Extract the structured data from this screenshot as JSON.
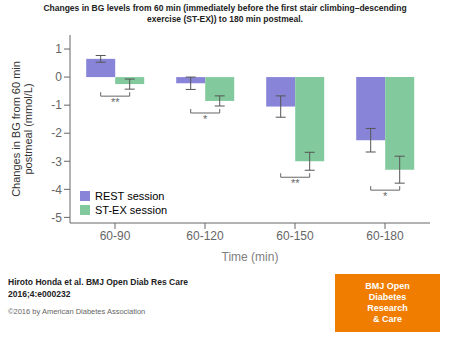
{
  "chart_data": {
    "type": "bar",
    "title": "Changes in BG levels from 60 min (immediately before the first stair climbing–descending\nexercise (ST-EX)) to 180 min postmeal.",
    "xlabel": "Time (min)",
    "ylabel": "Changes in BG from 60 min\npostmeal (mmol/L)",
    "categories": [
      "60-90",
      "60-120",
      "60-150",
      "60-180"
    ],
    "series": [
      {
        "name": "REST session",
        "color": "#8884d8",
        "values": [
          0.65,
          -0.22,
          -1.05,
          -2.25
        ],
        "errors": [
          0.12,
          0.22,
          0.38,
          0.42
        ]
      },
      {
        "name": "ST-EX session",
        "color": "#82ca9d",
        "values": [
          -0.25,
          -0.85,
          -3.0,
          -3.3
        ],
        "errors": [
          0.18,
          0.18,
          0.32,
          0.48
        ]
      }
    ],
    "ylim": [
      -5.2,
      1.5
    ],
    "yticks": [
      -5,
      -4,
      -3,
      -2,
      -1,
      0,
      1
    ],
    "grid": false,
    "legend": "lower left",
    "annotations": [
      {
        "text": "**",
        "category": "60-90"
      },
      {
        "text": "*",
        "category": "60-120"
      },
      {
        "text": "**",
        "category": "60-150"
      },
      {
        "text": "*",
        "category": "60-180"
      }
    ],
    "footnotes": [
      "Hiroto Honda et al. BMJ Open Diab Res Care",
      "2016;4:e000232",
      "©2016 by American Diabetes Association"
    ],
    "badge": {
      "text": "BMJ Open\nDiabetes\nResearch\n& Care",
      "color": "#F07D00",
      "text_color": "#ffffff"
    }
  }
}
